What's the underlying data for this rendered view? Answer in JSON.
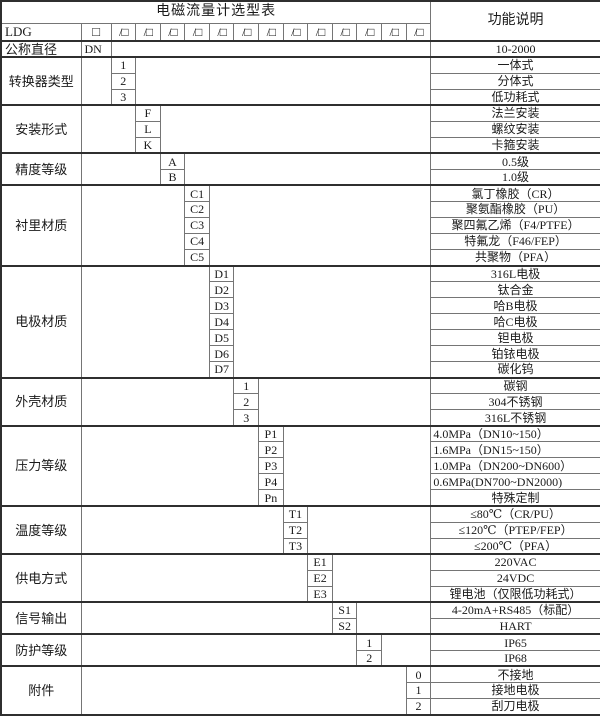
{
  "title": "电磁流量计选型表",
  "function_header": "功能说明",
  "model_prefix": "LDG",
  "box": "□",
  "slash_box": "/□",
  "slash_box_count": 13,
  "colors": {
    "background": "#ffffff",
    "text": "#1a1a1a",
    "grid_line": "#757575",
    "strong_line": "#2f2f2f"
  },
  "groups": [
    {
      "label": "公称直径",
      "label_align": "left",
      "code_col": 2,
      "rows": [
        {
          "code": "DN",
          "code_align": "left",
          "desc": "10-2000"
        }
      ]
    },
    {
      "label": "转换器类型",
      "code_col": 3,
      "rows": [
        {
          "code": "1",
          "desc": "一体式"
        },
        {
          "code": "2",
          "desc": "分体式"
        },
        {
          "code": "3",
          "desc": "低功耗式"
        }
      ]
    },
    {
      "label": "安装形式",
      "code_col": 4,
      "rows": [
        {
          "code": "F",
          "desc": "法兰安装"
        },
        {
          "code": "L",
          "desc": "螺纹安装"
        },
        {
          "code": "K",
          "desc": "卡箍安装"
        }
      ]
    },
    {
      "label": "精度等级",
      "code_col": 5,
      "rows": [
        {
          "code": "A",
          "desc": "0.5级"
        },
        {
          "code": "B",
          "desc": "1.0级"
        }
      ]
    },
    {
      "label": "衬里材质",
      "code_col": 6,
      "rows": [
        {
          "code": "C1",
          "desc": "氯丁橡胶（CR）"
        },
        {
          "code": "C2",
          "desc": "聚氨酯橡胶（PU）"
        },
        {
          "code": "C3",
          "desc": "聚四氟乙烯（F4/PTFE）"
        },
        {
          "code": "C4",
          "desc": "特氟龙（F46/FEP）"
        },
        {
          "code": "C5",
          "desc": "共聚物（PFA）"
        }
      ]
    },
    {
      "label": "电极材质",
      "code_col": 7,
      "rows": [
        {
          "code": "D1",
          "desc": "316L电极"
        },
        {
          "code": "D2",
          "desc": "钛合金"
        },
        {
          "code": "D3",
          "desc": "哈B电极"
        },
        {
          "code": "D4",
          "desc": "哈C电极"
        },
        {
          "code": "D5",
          "desc": "钽电极"
        },
        {
          "code": "D6",
          "desc": "铂铱电极"
        },
        {
          "code": "D7",
          "desc": "碳化钨"
        }
      ]
    },
    {
      "label": "外壳材质",
      "code_col": 8,
      "rows": [
        {
          "code": "1",
          "desc": "碳钢"
        },
        {
          "code": "2",
          "desc": "304不锈钢"
        },
        {
          "code": "3",
          "desc": "316L不锈钢"
        }
      ]
    },
    {
      "label": "压力等级",
      "code_col": 9,
      "rows": [
        {
          "code": "P1",
          "desc": "4.0MPa（DN10~150）",
          "align": "left"
        },
        {
          "code": "P2",
          "desc": "1.6MPa（DN15~150）",
          "align": "left"
        },
        {
          "code": "P3",
          "desc": "1.0MPa（DN200~DN600）",
          "align": "left"
        },
        {
          "code": "P4",
          "desc": "0.6MPa(DN700~DN2000)",
          "align": "left"
        },
        {
          "code": "Pn",
          "desc": "特殊定制"
        }
      ]
    },
    {
      "label": "温度等级",
      "code_col": 10,
      "rows": [
        {
          "code": "T1",
          "desc": "≤80℃（CR/PU）"
        },
        {
          "code": "T2",
          "desc": "≤120℃（PTEP/FEP）"
        },
        {
          "code": "T3",
          "desc": "≤200℃（PFA）"
        }
      ]
    },
    {
      "label": "供电方式",
      "code_col": 11,
      "rows": [
        {
          "code": "E1",
          "desc": "220VAC"
        },
        {
          "code": "E2",
          "desc": "24VDC"
        },
        {
          "code": "E3",
          "desc": "锂电池（仅限低功耗式）"
        }
      ]
    },
    {
      "label": "信号输出",
      "code_col": 12,
      "rows": [
        {
          "code": "S1",
          "desc": "4-20mA+RS485（标配）"
        },
        {
          "code": "S2",
          "desc": "HART"
        }
      ]
    },
    {
      "label": "防护等级",
      "code_col": 13,
      "rows": [
        {
          "code": "1",
          "desc": "IP65"
        },
        {
          "code": "2",
          "desc": "IP68"
        }
      ]
    },
    {
      "label": "附件",
      "code_col": 15,
      "rows": [
        {
          "code": "0",
          "desc": "不接地"
        },
        {
          "code": "1",
          "desc": "接地电极"
        },
        {
          "code": "2",
          "desc": "刮刀电极"
        }
      ]
    }
  ]
}
